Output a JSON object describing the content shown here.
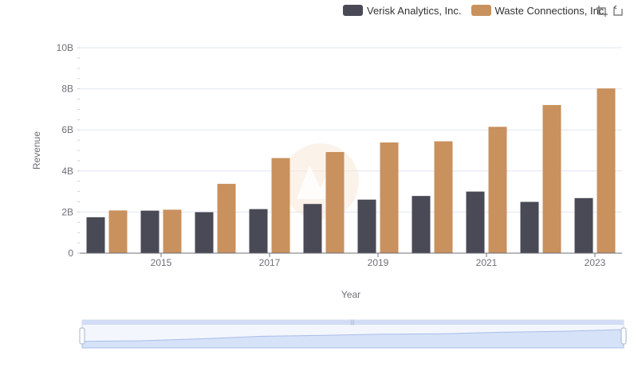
{
  "legend": [
    {
      "name": "Verisk Analytics, Inc.",
      "color": "#4a4a56"
    },
    {
      "name": "Waste Connections, Inc.",
      "color": "#c8915e"
    }
  ],
  "toolbox": {
    "zoom_icon": "zoom-icon",
    "restore_icon": "restore-icon"
  },
  "chart_data": {
    "type": "bar",
    "xlabel": "Year",
    "ylabel": "Revenue",
    "categories": [
      2014,
      2015,
      2016,
      2017,
      2018,
      2019,
      2020,
      2021,
      2022,
      2023
    ],
    "xtick_labels": [
      "2015",
      "2017",
      "2019",
      "2021",
      "2023"
    ],
    "ytick_labels": [
      "0",
      "2B",
      "4B",
      "6B",
      "8B",
      "10B"
    ],
    "ylim": [
      0,
      10000000000
    ],
    "grid": true,
    "legend_position": "top-right",
    "series": [
      {
        "name": "Verisk Analytics, Inc.",
        "color": "#4a4a56",
        "values": [
          1750000000,
          2070000000,
          1995000000,
          2145000000,
          2395000000,
          2607000000,
          2785000000,
          2999000000,
          2497000000,
          2681000000
        ]
      },
      {
        "name": "Waste Connections, Inc.",
        "color": "#c8915e",
        "values": [
          2079000000,
          2117000000,
          3376000000,
          4630000000,
          4923000000,
          5389000000,
          5446000000,
          6151000000,
          7212000000,
          8021000000
        ]
      }
    ]
  }
}
